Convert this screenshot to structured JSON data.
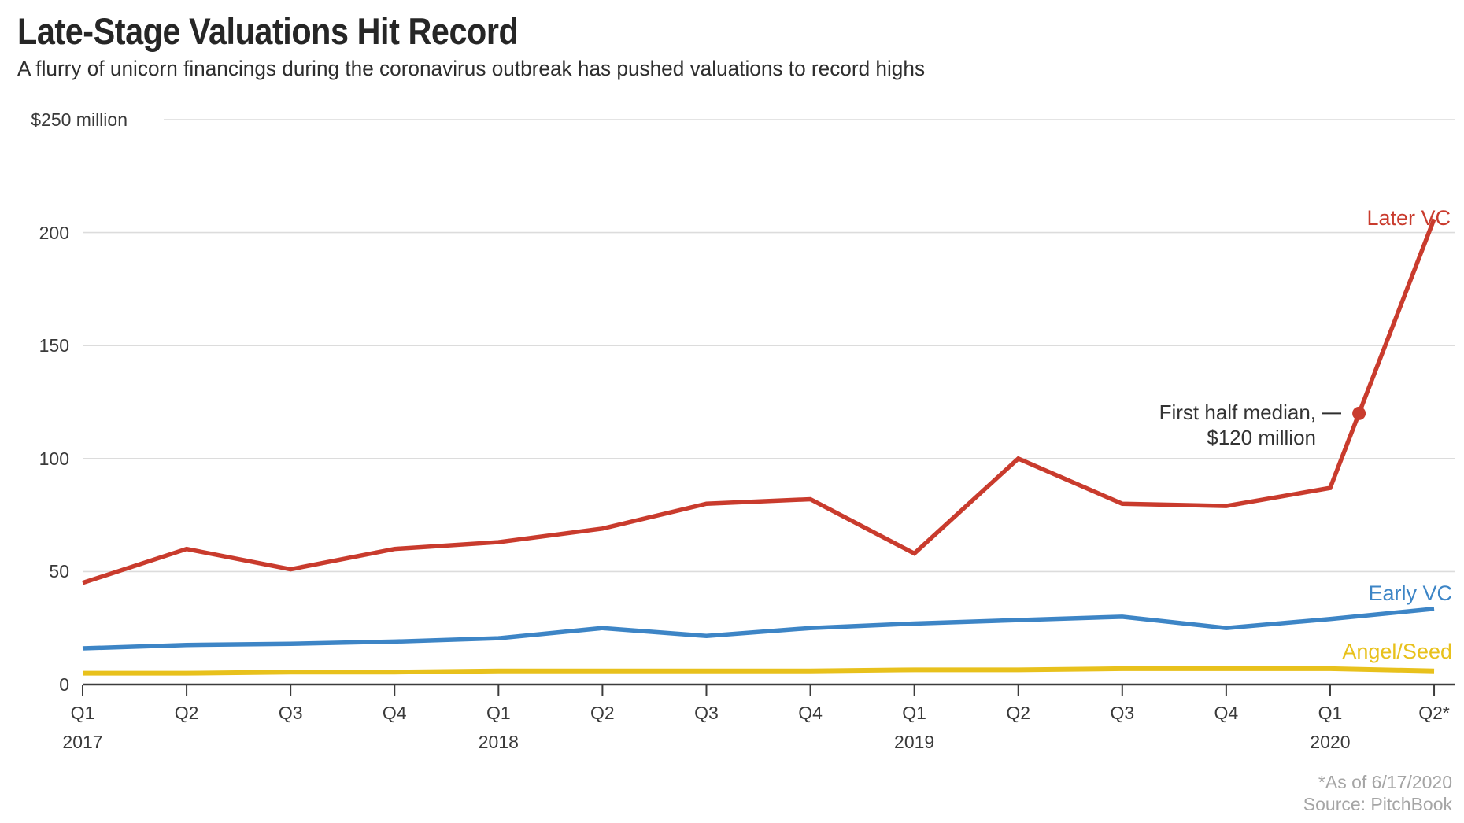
{
  "header": {
    "title": "Late-Stage Valuations Hit Record",
    "subtitle": "A flurry of unicorn financings during the coronavirus outbreak has pushed valuations to record highs"
  },
  "chart_data": {
    "type": "line",
    "x_categories": [
      "Q1",
      "Q2",
      "Q3",
      "Q4",
      "Q1",
      "Q2",
      "Q3",
      "Q4",
      "Q1",
      "Q2",
      "Q3",
      "Q4",
      "Q1",
      "Q2*"
    ],
    "year_labels": [
      {
        "label": "2017",
        "index": 0
      },
      {
        "label": "2018",
        "index": 4
      },
      {
        "label": "2019",
        "index": 8
      },
      {
        "label": "2020",
        "index": 12
      }
    ],
    "y_axis": {
      "top_label": "$250 million",
      "ticks": [
        0,
        50,
        100,
        150,
        200,
        250
      ],
      "range": [
        0,
        250
      ],
      "unit": "$ million",
      "grid": true
    },
    "series": [
      {
        "name": "Later VC",
        "color": "#c93b2d",
        "values": [
          45,
          60,
          51,
          60,
          63,
          69,
          80,
          82,
          58,
          100,
          80,
          79,
          87,
          206
        ]
      },
      {
        "name": "Early VC",
        "color": "#3d85c6",
        "values": [
          16,
          17.5,
          18,
          19,
          20.5,
          25,
          21.5,
          25,
          27,
          28.5,
          30,
          25,
          29,
          33.5
        ]
      },
      {
        "name": "Angel/Seed",
        "color": "#e8c11c",
        "values": [
          5,
          5,
          5.5,
          5.5,
          6,
          6,
          6,
          6,
          6.5,
          6.5,
          7,
          7,
          7,
          6
        ]
      }
    ],
    "annotation": {
      "line1": "First half median,",
      "line2": "$120 million",
      "value": 120,
      "series": "Later VC",
      "segment_start_index": 12
    },
    "footnotes": [
      "*As of 6/17/2020",
      "Source: PitchBook"
    ],
    "colors": {
      "grid": "#dcdcdc",
      "axis": "#3c3c3c",
      "text": "#3a3a3a",
      "footnote": "#a5a5a5"
    },
    "legend_position": "end-of-line-labels"
  }
}
